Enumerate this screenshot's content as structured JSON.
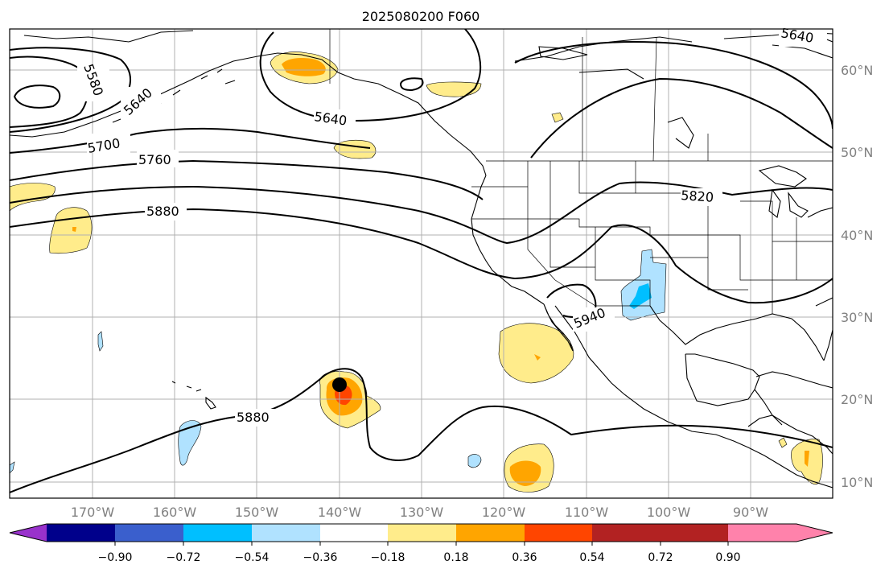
{
  "title": "2025080200 F060",
  "lat_labels": [
    "60°N",
    "50°N",
    "40°N",
    "30°N",
    "20°N",
    "10°N"
  ],
  "lon_labels": [
    "170°W",
    "160°W",
    "150°W",
    "140°W",
    "130°W",
    "120°W",
    "110°W",
    "100°W",
    "90°W"
  ],
  "colorbar": {
    "ticks": [
      "−0.90",
      "−0.72",
      "−0.54",
      "−0.36",
      "−0.18",
      "0.18",
      "0.36",
      "0.54",
      "0.72",
      "0.90"
    ],
    "colors": [
      "#9932cc",
      "#00008b",
      "#3a5fcd",
      "#00bfff",
      "#b0e2ff",
      "#ffffff",
      "#ffec8b",
      "#ffa500",
      "#ff4500",
      "#b22222",
      "#ff82ab"
    ]
  },
  "contour_labels": [
    "5580",
    "5640",
    "5700",
    "5760",
    "5880",
    "5640",
    "5820",
    "5940",
    "5880",
    "5640"
  ],
  "storm_marker": {
    "lon": -140,
    "lat": 22
  },
  "shading_colors": {
    "light_yellow": "#ffec8b",
    "orange": "#ffa500",
    "red_orange": "#ff4500",
    "light_blue": "#b0e2ff",
    "sky_blue": "#00bfff"
  }
}
